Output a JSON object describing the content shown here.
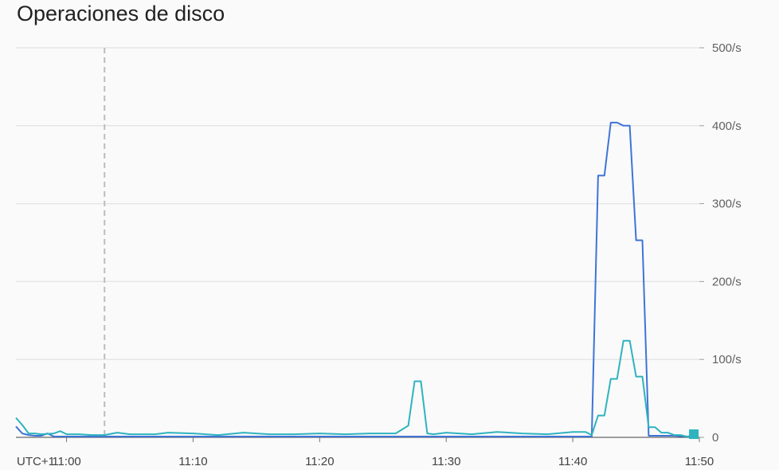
{
  "chart_data": {
    "type": "line",
    "title": "Operaciones de disco",
    "timezone_label": "UTC+1",
    "x_ticks": [
      "11:00",
      "11:10",
      "11:20",
      "11:30",
      "11:40",
      "11:50"
    ],
    "y_ticks": [
      "0",
      "100/s",
      "200/s",
      "300/s",
      "400/s",
      "500/s"
    ],
    "ylim": [
      0,
      500
    ],
    "xlim": [
      "10:56",
      "11:50"
    ],
    "grid": true,
    "marker_time": "11:03",
    "colors": {
      "series_1": "#3f74d6",
      "series_2": "#2fb3bf",
      "grid": "#e6e6e6",
      "marker": "#bdbdbd"
    },
    "series": [
      {
        "color": "#3f74d6",
        "x": [
          "10:56:00",
          "10:56:30",
          "10:57:00",
          "10:57:30",
          "10:58:00",
          "10:58:30",
          "10:59:00",
          "11:00:00",
          "11:05:00",
          "11:10:00",
          "11:15:00",
          "11:20:00",
          "11:25:00",
          "11:30:00",
          "11:35:00",
          "11:40:00",
          "11:41:00",
          "11:41:30",
          "11:42:00",
          "11:42:30",
          "11:43:00",
          "11:43:30",
          "11:44:00",
          "11:44:30",
          "11:45:00",
          "11:45:30",
          "11:46:00",
          "11:46:30",
          "11:47:00",
          "11:48:00",
          "11:49:00",
          "11:49:30"
        ],
        "values": [
          14,
          5,
          3,
          2,
          2,
          5,
          1,
          1,
          1,
          1,
          1,
          1,
          1,
          1,
          1,
          1,
          1,
          1,
          336,
          336,
          404,
          404,
          400,
          400,
          253,
          253,
          2,
          2,
          2,
          2,
          1,
          1
        ]
      },
      {
        "color": "#2fb3bf",
        "x": [
          "10:56:00",
          "10:56:30",
          "10:57:00",
          "10:57:30",
          "10:58:00",
          "10:59:00",
          "10:59:30",
          "11:00:00",
          "11:01:00",
          "11:02:00",
          "11:03:00",
          "11:04:00",
          "11:05:00",
          "11:06:00",
          "11:07:00",
          "11:08:00",
          "11:10:00",
          "11:12:00",
          "11:14:00",
          "11:16:00",
          "11:18:00",
          "11:20:00",
          "11:22:00",
          "11:24:00",
          "11:26:00",
          "11:27:00",
          "11:27:30",
          "11:28:00",
          "11:28:30",
          "11:29:00",
          "11:30:00",
          "11:32:00",
          "11:34:00",
          "11:36:00",
          "11:38:00",
          "11:40:00",
          "11:41:00",
          "11:41:30",
          "11:42:00",
          "11:42:30",
          "11:43:00",
          "11:43:30",
          "11:44:00",
          "11:44:30",
          "11:45:00",
          "11:45:30",
          "11:46:00",
          "11:46:30",
          "11:47:00",
          "11:47:30",
          "11:48:00",
          "11:48:30",
          "11:49:00",
          "11:49:30"
        ],
        "values": [
          25,
          16,
          5,
          5,
          4,
          5,
          8,
          4,
          4,
          3,
          3,
          6,
          4,
          4,
          4,
          6,
          5,
          3,
          6,
          4,
          4,
          5,
          4,
          5,
          5,
          15,
          72,
          72,
          5,
          4,
          6,
          4,
          7,
          5,
          4,
          7,
          7,
          3,
          28,
          28,
          75,
          75,
          124,
          124,
          78,
          78,
          13,
          13,
          6,
          6,
          3,
          3,
          1,
          2
        ]
      }
    ]
  }
}
